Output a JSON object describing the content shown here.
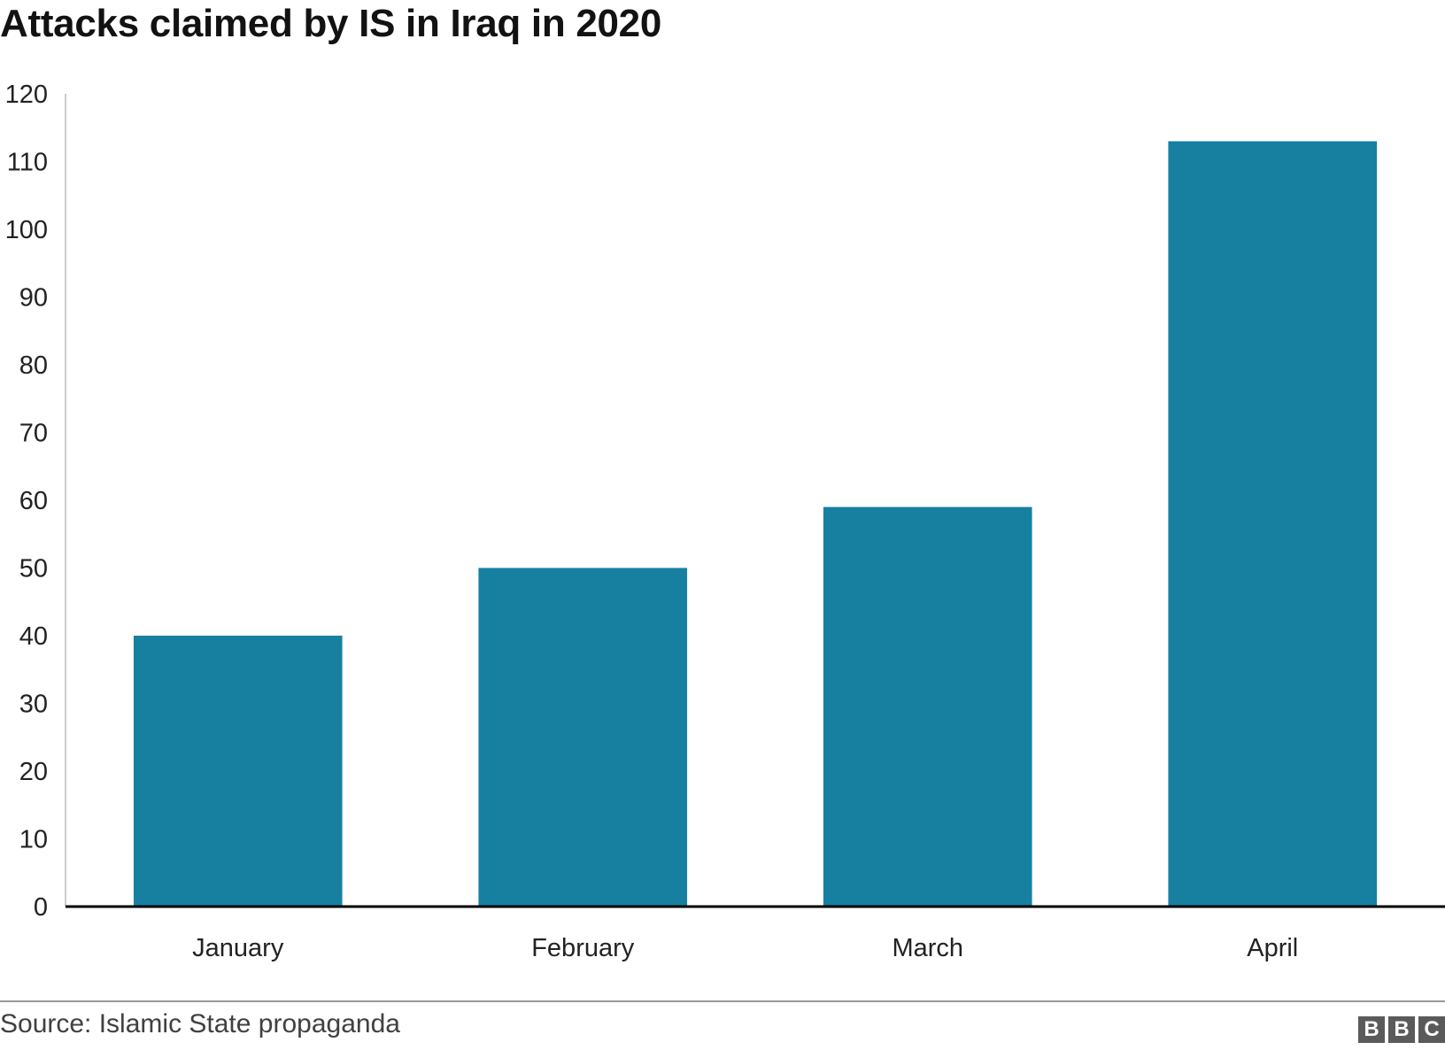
{
  "title": "Attacks claimed by IS in Iraq in 2020",
  "source": "Source: Islamic State propaganda",
  "logo": [
    "B",
    "B",
    "C"
  ],
  "colors": {
    "bar": "#1780a1",
    "axis": "#000000",
    "grid": "#cccccc",
    "text": "#222222"
  },
  "chart_data": {
    "type": "bar",
    "categories": [
      "January",
      "February",
      "March",
      "April"
    ],
    "values": [
      40,
      50,
      59,
      113
    ],
    "title": "Attacks claimed by IS in Iraq in 2020",
    "xlabel": "",
    "ylabel": "",
    "ylim": [
      0,
      120
    ],
    "yticks": [
      0,
      10,
      20,
      30,
      40,
      50,
      60,
      70,
      80,
      90,
      100,
      110,
      120
    ],
    "grid": false,
    "legend": "none"
  }
}
